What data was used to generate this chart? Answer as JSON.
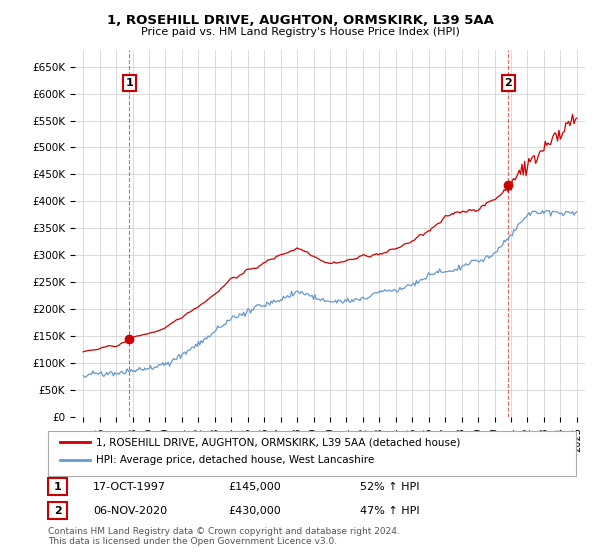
{
  "title": "1, ROSEHILL DRIVE, AUGHTON, ORMSKIRK, L39 5AA",
  "subtitle": "Price paid vs. HM Land Registry's House Price Index (HPI)",
  "ylabel_ticks": [
    "£0",
    "£50K",
    "£100K",
    "£150K",
    "£200K",
    "£250K",
    "£300K",
    "£350K",
    "£400K",
    "£450K",
    "£500K",
    "£550K",
    "£600K",
    "£650K"
  ],
  "ytick_values": [
    0,
    50000,
    100000,
    150000,
    200000,
    250000,
    300000,
    350000,
    400000,
    450000,
    500000,
    550000,
    600000,
    650000
  ],
  "xlim": [
    1994.5,
    2025.5
  ],
  "ylim": [
    0,
    680000
  ],
  "red_line_color": "#cc0000",
  "blue_line_color": "#6699cc",
  "grid_color": "#cccccc",
  "bg_color": "#ffffff",
  "transaction1_date": "17-OCT-1997",
  "transaction1_price": 145000,
  "transaction1_hpi": "52% ↑ HPI",
  "transaction2_date": "06-NOV-2020",
  "transaction2_price": 430000,
  "transaction2_hpi": "47% ↑ HPI",
  "legend_line1": "1, ROSEHILL DRIVE, AUGHTON, ORMSKIRK, L39 5AA (detached house)",
  "legend_line2": "HPI: Average price, detached house, West Lancashire",
  "footnote": "Contains HM Land Registry data © Crown copyright and database right 2024.\nThis data is licensed under the Open Government Licence v3.0.",
  "marker1_x": 1997.8,
  "marker1_y": 145000,
  "marker2_x": 2020.85,
  "marker2_y": 430000
}
